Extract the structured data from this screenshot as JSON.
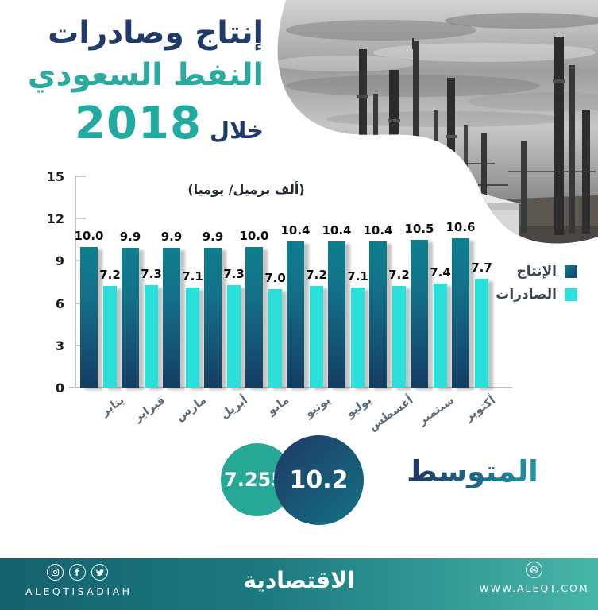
{
  "title": {
    "line1": "إنتاج وصادرات",
    "line2": "النفط السعودي",
    "during": "خلال",
    "year": "2018"
  },
  "chart_data": {
    "type": "bar",
    "title": "إنتاج وصادرات النفط السعودي خلال 2018",
    "unit_label": "(ألف برميل/ يوميا)",
    "categories": [
      "يناير",
      "فبراير",
      "مارس",
      "أبريل",
      "مايو",
      "يونيو",
      "يوليو",
      "أغسطس",
      "سبتمبر",
      "أكتوبر"
    ],
    "series": [
      {
        "name": "الإنتاج",
        "values": [
          10.0,
          9.9,
          9.9,
          9.9,
          10.0,
          10.4,
          10.4,
          10.4,
          10.5,
          10.6
        ]
      },
      {
        "name": "الصادرات",
        "values": [
          7.2,
          7.3,
          7.1,
          7.3,
          7.0,
          7.2,
          7.1,
          7.2,
          7.4,
          7.7
        ]
      }
    ],
    "y_ticks": [
      0,
      3,
      6,
      9,
      12,
      15
    ],
    "ylim": [
      0,
      15
    ],
    "grid": false,
    "legend_position": "right"
  },
  "legend": {
    "production": "الإنتاج",
    "exports": "الصادرات"
  },
  "average": {
    "label": "المتوسط",
    "production": "10.2",
    "exports": "7.255"
  },
  "footer": {
    "handle": "ALEQTISADIAH",
    "logo": "الاقتصادية",
    "website": "WWW.ALEQT.COM"
  },
  "colors": {
    "title_navy": "#203a6a",
    "title_teal": "#2bab9f",
    "production_bar_top": "#0e7f8e",
    "production_bar_bottom": "#153d64",
    "exports_bar": "#2ae0da",
    "avg_small_circle": "#27a795",
    "footer_left": "#14616e",
    "footer_right": "#47b5a9"
  }
}
